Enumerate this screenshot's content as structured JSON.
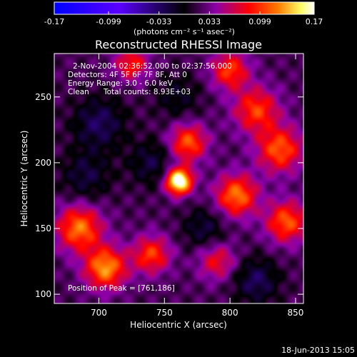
{
  "chart_data": {
    "type": "heatmap",
    "title": "Reconstructed RHESSI Image",
    "xlabel": "Heliocentric X (arcsec)",
    "ylabel": "Heliocentric Y (arcsec)",
    "xlim": [
      666,
      856
    ],
    "ylim": [
      93,
      283
    ],
    "x_ticks": [
      700,
      750,
      800,
      850
    ],
    "y_ticks": [
      100,
      150,
      200,
      250
    ],
    "colorbar": {
      "min": -0.17,
      "max": 0.17,
      "tick_labels": [
        "-0.17",
        "-0.099",
        "-0.033",
        "0.033",
        "0.099",
        "0.17"
      ],
      "tick_values": [
        -0.17,
        -0.099,
        -0.033,
        0.033,
        0.099,
        0.17
      ],
      "units_label": "(photons cm⁻² s⁻¹ asec⁻²)",
      "colormap": [
        "#0000ff",
        "#5a00ff",
        "#000000",
        "#8b00a8",
        "#ff0000",
        "#ff7a00",
        "#ffff66",
        "#ffffff"
      ]
    },
    "peak": {
      "x": 761,
      "y": 186
    },
    "sources": [
      {
        "x": 761,
        "y": 186,
        "amp": 0.17,
        "sigma": 7
      },
      {
        "x": 768,
        "y": 215,
        "amp": 0.09,
        "sigma": 10
      },
      {
        "x": 805,
        "y": 175,
        "amp": 0.1,
        "sigma": 11
      },
      {
        "x": 838,
        "y": 210,
        "amp": 0.09,
        "sigma": 12
      },
      {
        "x": 820,
        "y": 240,
        "amp": 0.08,
        "sigma": 12
      },
      {
        "x": 800,
        "y": 270,
        "amp": 0.08,
        "sigma": 10
      },
      {
        "x": 685,
        "y": 150,
        "amp": 0.1,
        "sigma": 12
      },
      {
        "x": 705,
        "y": 120,
        "amp": 0.11,
        "sigma": 11
      },
      {
        "x": 740,
        "y": 130,
        "amp": 0.08,
        "sigma": 10
      },
      {
        "x": 843,
        "y": 155,
        "amp": 0.09,
        "sigma": 11
      },
      {
        "x": 790,
        "y": 125,
        "amp": 0.06,
        "sigma": 10
      },
      {
        "x": 725,
        "y": 275,
        "amp": 0.07,
        "sigma": 9
      },
      {
        "x": 700,
        "y": 230,
        "amp": -0.05,
        "sigma": 14
      },
      {
        "x": 740,
        "y": 200,
        "amp": -0.04,
        "sigma": 12
      },
      {
        "x": 690,
        "y": 190,
        "amp": -0.04,
        "sigma": 13
      },
      {
        "x": 780,
        "y": 150,
        "amp": -0.04,
        "sigma": 11
      },
      {
        "x": 820,
        "y": 110,
        "amp": -0.05,
        "sigma": 12
      },
      {
        "x": 760,
        "y": 250,
        "amp": -0.03,
        "sigma": 12
      }
    ]
  },
  "info": {
    "time_range": "2-Nov-2004 02:36:52.000 to 02:37:56.000",
    "detectors": "Detectors: 4F 5F 6F 7F 8F, Att 0",
    "energy": "Energy Range: 3.0 - 6.0 keV",
    "method": "Clean",
    "counts": "Total counts: 8.93E+03",
    "peak_text": "Position of Peak = [761,186]"
  },
  "footer": {
    "date": "18-Jun-2013 15:05"
  }
}
